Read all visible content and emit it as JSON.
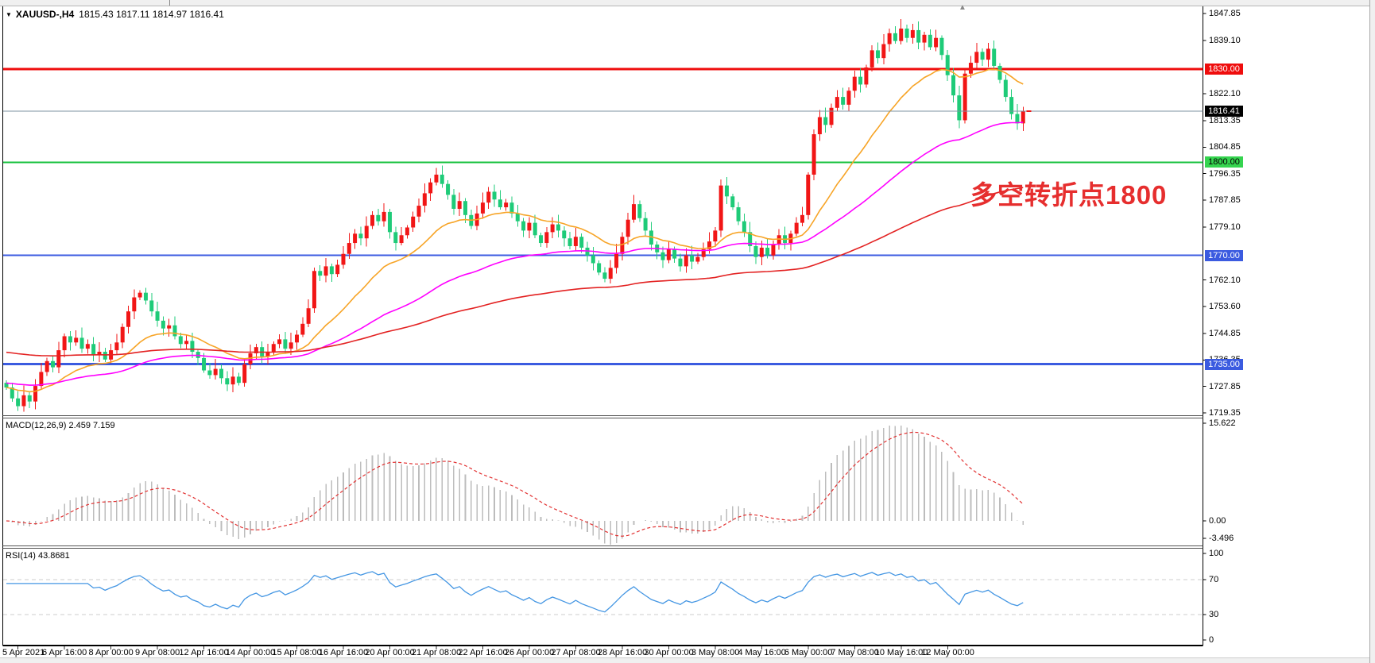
{
  "header": {
    "symbol": "XAUUSD-,H4",
    "quote": "1815.43 1817.11 1814.97 1816.41"
  },
  "icons": {
    "symbol_dropdown": "▼",
    "scroll_end": "▲"
  },
  "annotation": {
    "text": "多空转折点1800",
    "color": "#e62e2e"
  },
  "price_axis": {
    "ticks": [
      1847.85,
      1839.1,
      1822.1,
      1813.35,
      1804.85,
      1796.35,
      1787.85,
      1779.1,
      1762.1,
      1753.6,
      1744.85,
      1736.35,
      1727.85,
      1719.35
    ]
  },
  "hlines": [
    {
      "price": 1830.0,
      "label": "1830.00",
      "line_color": "#ef0d0d",
      "line_width": 3,
      "label_bg": "#ef0d0d",
      "label_fg": "#ffffff"
    },
    {
      "price": 1800.0,
      "label": "1800.00",
      "line_color": "#17c13e",
      "line_width": 2,
      "label_bg": "#35d44f",
      "label_fg": "#000000"
    },
    {
      "price": 1770.0,
      "label": "1770.00",
      "line_color": "#3b5be0",
      "line_width": 2,
      "label_bg": "#3b5be0",
      "label_fg": "#ffffff"
    },
    {
      "price": 1735.0,
      "label": "1735.00",
      "line_color": "#3b5be0",
      "line_width": 3,
      "label_bg": "#3b5be0",
      "label_fg": "#ffffff"
    }
  ],
  "current_price_line": {
    "price": 1816.41,
    "label": "1816.41",
    "line_color": "#7d93a0",
    "label_bg": "#000000",
    "label_fg": "#ffffff"
  },
  "time_axis": {
    "labels": [
      "5 Apr 2021",
      "6 Apr 16:00",
      "8 Apr 00:00",
      "9 Apr 08:00",
      "12 Apr 16:00",
      "14 Apr 00:00",
      "15 Apr 08:00",
      "16 Apr 16:00",
      "20 Apr 00:00",
      "21 Apr 08:00",
      "22 Apr 16:00",
      "26 Apr 00:00",
      "27 Apr 08:00",
      "28 Apr 16:00",
      "30 Apr 00:00",
      "3 May 08:00",
      "4 May 16:00",
      "6 May 00:00",
      "7 May 08:00",
      "10 May 16:00",
      "12 May 00:00"
    ]
  },
  "panels": {
    "macd": {
      "label": "MACD(12,26,9) 2.459 7.159",
      "axis_top": "15.622",
      "axis_zero": "0.00",
      "axis_min": "-3.496"
    },
    "rsi": {
      "label": "RSI(14) 43.8681",
      "axis_100": "100",
      "axis_70": "70",
      "axis_30": "30",
      "axis_0": "0"
    }
  },
  "chart_data": {
    "type": "candlestick",
    "symbol": "XAUUSD-",
    "timeframe": "H4",
    "title": "XAUUSD-,H4 1815.43 1817.11 1814.97 1816.41",
    "last_bar": {
      "open": 1815.43,
      "high": 1817.11,
      "low": 1814.97,
      "close": 1816.41
    },
    "y_range": [
      1718.3,
      1850.2
    ],
    "up_color": "#f11616",
    "down_color": "#1ecb78",
    "first_open": 1729.0,
    "closes": [
      1727.5,
      1724.0,
      1721.5,
      1725.0,
      1723.0,
      1728.0,
      1732.5,
      1736.0,
      1734.0,
      1739.5,
      1744.0,
      1742.0,
      1743.5,
      1740.0,
      1741.5,
      1738.0,
      1739.0,
      1736.5,
      1739.5,
      1742.0,
      1747.0,
      1752.0,
      1756.5,
      1758.0,
      1755.5,
      1752.0,
      1749.0,
      1746.5,
      1747.5,
      1744.0,
      1741.5,
      1742.5,
      1739.0,
      1737.0,
      1733.0,
      1731.5,
      1733.5,
      1730.5,
      1728.5,
      1731.0,
      1729.0,
      1735.0,
      1738.5,
      1740.5,
      1737.5,
      1739.0,
      1741.5,
      1743.0,
      1740.0,
      1742.0,
      1744.5,
      1748.0,
      1753.0,
      1765.0,
      1763.5,
      1766.5,
      1764.0,
      1767.0,
      1770.5,
      1774.0,
      1777.0,
      1775.5,
      1779.5,
      1783.0,
      1781.0,
      1784.0,
      1777.5,
      1774.0,
      1776.5,
      1779.0,
      1782.5,
      1786.0,
      1790.0,
      1793.5,
      1796.0,
      1793.0,
      1789.5,
      1785.0,
      1787.5,
      1783.0,
      1779.5,
      1783.5,
      1787.0,
      1790.5,
      1788.0,
      1785.5,
      1787.0,
      1783.5,
      1781.0,
      1778.0,
      1780.5,
      1776.5,
      1774.0,
      1777.5,
      1780.0,
      1778.0,
      1775.5,
      1773.0,
      1776.0,
      1772.5,
      1770.0,
      1767.5,
      1764.5,
      1762.5,
      1766.0,
      1770.5,
      1776.0,
      1781.5,
      1786.5,
      1782.0,
      1778.0,
      1773.5,
      1771.0,
      1768.5,
      1772.0,
      1769.0,
      1766.5,
      1770.0,
      1768.0,
      1769.5,
      1772.0,
      1774.5,
      1778.0,
      1792.5,
      1789.0,
      1785.5,
      1781.0,
      1777.5,
      1773.0,
      1769.5,
      1772.5,
      1770.0,
      1773.5,
      1776.5,
      1774.0,
      1777.0,
      1780.5,
      1783.0,
      1796.0,
      1809.0,
      1814.5,
      1812.0,
      1817.5,
      1821.0,
      1818.5,
      1823.0,
      1827.5,
      1825.0,
      1830.5,
      1836.0,
      1833.5,
      1838.0,
      1841.5,
      1839.0,
      1843.0,
      1840.0,
      1842.5,
      1838.5,
      1841.0,
      1837.0,
      1840.0,
      1834.5,
      1828.0,
      1821.5,
      1813.5,
      1828.5,
      1832.0,
      1835.5,
      1833.0,
      1836.5,
      1831.0,
      1826.5,
      1821.0,
      1815.5,
      1812.5,
      1816.41
    ],
    "moving_averages": [
      {
        "name": "fast-ma",
        "period": 20,
        "color": "#f7a426"
      },
      {
        "name": "mid-ma",
        "period": 60,
        "color": "#ff00ff"
      },
      {
        "name": "slow-ma",
        "period": 140,
        "color": "#e32222"
      }
    ],
    "horizontal_levels": [
      1830.0,
      1800.0,
      1770.0,
      1735.0
    ],
    "current_price": 1816.41,
    "macd": {
      "fast": 12,
      "slow": 26,
      "signal": 9,
      "display_values": [
        2.459,
        7.159
      ],
      "axis_values": [
        15.622,
        0.0,
        -3.496
      ],
      "histogram_color": "#bcbcbc",
      "signal_color": "#e23232"
    },
    "rsi": {
      "period": 14,
      "value": 43.8681,
      "levels": [
        70,
        30
      ],
      "line_color": "#4496e3",
      "level_color": "#cccccc"
    }
  }
}
